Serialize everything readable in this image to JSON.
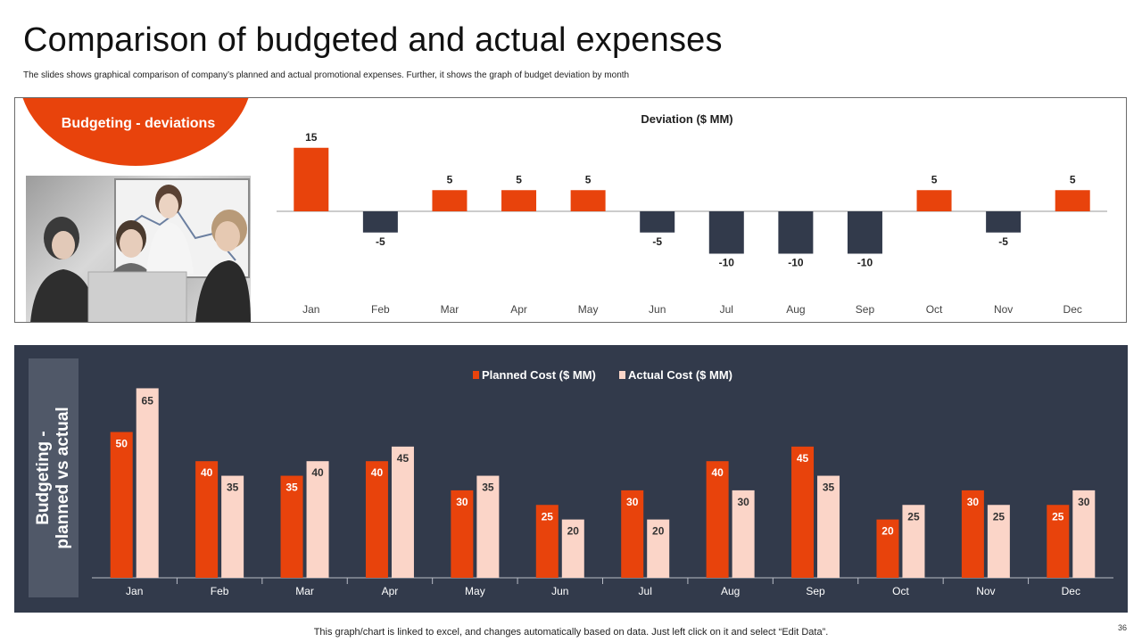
{
  "page": {
    "title": "Comparison of budgeted and actual expenses",
    "subtitle": "The slides shows graphical comparison of company’s planned and actual promotional expenses. Further, it shows the graph of budget deviation by month",
    "badge_label": "Budgeting - deviations",
    "side_label_line1": "Budgeting -",
    "side_label_line2": "planned vs actual",
    "footer": "This graph/chart is linked to excel,  and changes automatically based on data. Just left click on it and select “Edit Data”.",
    "page_number": "36"
  },
  "colors": {
    "accent": "#e8430c",
    "navy": "#323a4b",
    "slate": "#505868",
    "peach": "#fbd5c8"
  },
  "chart_data": [
    {
      "type": "bar",
      "title": "Deviation ($ MM)",
      "categories": [
        "Jan",
        "Feb",
        "Mar",
        "Apr",
        "May",
        "Jun",
        "Jul",
        "Aug",
        "Sep",
        "Oct",
        "Nov",
        "Dec"
      ],
      "values": [
        15,
        -5,
        5,
        5,
        5,
        -5,
        -10,
        -10,
        -10,
        5,
        -5,
        5
      ],
      "positive_color": "#e8430c",
      "negative_color": "#323a4b",
      "ylim": [
        -10,
        15
      ],
      "xlabel": "",
      "ylabel": "",
      "grid": false
    },
    {
      "type": "bar",
      "title": "",
      "categories": [
        "Jan",
        "Feb",
        "Mar",
        "Apr",
        "May",
        "Jun",
        "Jul",
        "Aug",
        "Sep",
        "Oct",
        "Nov",
        "Dec"
      ],
      "series": [
        {
          "name": "Planned Cost ($ MM)",
          "values": [
            50,
            40,
            35,
            40,
            30,
            25,
            30,
            40,
            45,
            20,
            30,
            25
          ],
          "color": "#e8430c"
        },
        {
          "name": "Actual Cost ($ MM)",
          "values": [
            65,
            35,
            40,
            45,
            35,
            20,
            20,
            30,
            35,
            25,
            25,
            30
          ],
          "color": "#fbd5c8"
        }
      ],
      "legend": "top-center",
      "ylim": [
        0,
        65
      ],
      "xlabel": "",
      "ylabel": "",
      "grid": false
    }
  ]
}
